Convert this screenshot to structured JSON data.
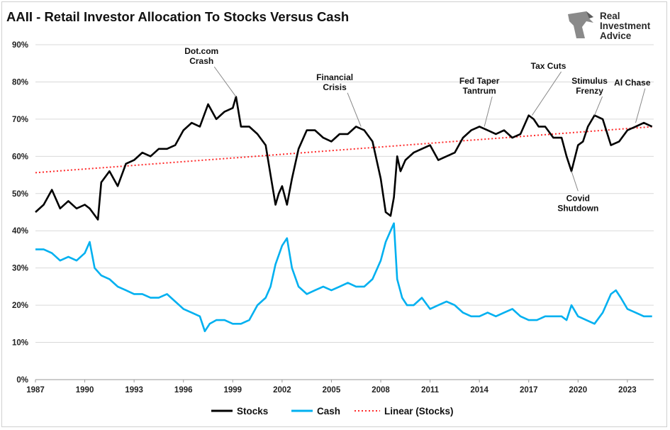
{
  "title": "AAII - Retail Investor Allocation To Stocks Versus Cash",
  "logo": {
    "lines": [
      "Real",
      "Investment",
      "Advice"
    ]
  },
  "colors": {
    "stocks": "#000000",
    "cash": "#00b0f0",
    "trend": "#ff2a2a",
    "grid": "#d9d9d9"
  },
  "chart_data": {
    "type": "line",
    "title": "AAII - Retail Investor Allocation To Stocks Versus Cash",
    "xlabel": "",
    "ylabel": "",
    "xlim": [
      1987,
      2024.6
    ],
    "ylim": [
      0,
      90
    ],
    "y_ticks": [
      "0%",
      "10%",
      "20%",
      "30%",
      "40%",
      "50%",
      "60%",
      "70%",
      "80%",
      "90%"
    ],
    "x_ticks": [
      "1987",
      "1990",
      "1993",
      "1996",
      "1999",
      "2002",
      "2005",
      "2008",
      "2011",
      "2014",
      "2017",
      "2020",
      "2023"
    ],
    "grid": "horizontal",
    "legend_position": "bottom",
    "series": [
      {
        "name": "Stocks",
        "x": [
          1987.0,
          1987.5,
          1988.0,
          1988.5,
          1989.0,
          1989.5,
          1990.0,
          1990.3,
          1990.8,
          1991.0,
          1991.5,
          1992.0,
          1992.5,
          1993.0,
          1993.5,
          1994.0,
          1994.5,
          1995.0,
          1995.5,
          1996.0,
          1996.5,
          1997.0,
          1997.5,
          1998.0,
          1998.5,
          1999.0,
          1999.2,
          1999.5,
          2000.0,
          2000.5,
          2001.0,
          2001.3,
          2001.6,
          2001.8,
          2002.0,
          2002.3,
          2002.6,
          2003.0,
          2003.5,
          2004.0,
          2004.5,
          2005.0,
          2005.5,
          2006.0,
          2006.5,
          2007.0,
          2007.5,
          2008.0,
          2008.3,
          2008.6,
          2008.8,
          2009.0,
          2009.2,
          2009.5,
          2010.0,
          2010.5,
          2011.0,
          2011.5,
          2012.0,
          2012.5,
          2013.0,
          2013.5,
          2014.0,
          2014.5,
          2015.0,
          2015.5,
          2016.0,
          2016.5,
          2017.0,
          2017.3,
          2017.6,
          2018.0,
          2018.5,
          2019.0,
          2019.3,
          2019.6,
          2020.0,
          2020.3,
          2020.6,
          2021.0,
          2021.5,
          2022.0,
          2022.5,
          2023.0,
          2023.5,
          2024.0,
          2024.5
        ],
        "values": [
          45,
          47,
          51,
          46,
          48,
          46,
          47,
          46,
          43,
          53,
          56,
          52,
          58,
          59,
          61,
          60,
          62,
          62,
          63,
          67,
          69,
          68,
          74,
          70,
          72,
          73,
          76,
          68,
          68,
          66,
          63,
          55,
          47,
          50,
          52,
          47,
          54,
          62,
          67,
          67,
          65,
          64,
          66,
          66,
          68,
          67,
          64,
          54,
          45,
          44,
          49,
          60,
          56,
          59,
          61,
          62,
          63,
          59,
          60,
          61,
          65,
          67,
          68,
          67,
          66,
          67,
          65,
          66,
          71,
          70,
          68,
          68,
          65,
          65,
          60,
          56,
          63,
          64,
          68,
          71,
          70,
          63,
          64,
          67,
          68,
          69,
          68
        ]
      },
      {
        "name": "Cash",
        "x": [
          1987.0,
          1987.5,
          1988.0,
          1988.5,
          1989.0,
          1989.5,
          1990.0,
          1990.3,
          1990.6,
          1991.0,
          1991.5,
          1992.0,
          1992.5,
          1993.0,
          1993.5,
          1994.0,
          1994.5,
          1995.0,
          1995.5,
          1996.0,
          1996.5,
          1997.0,
          1997.3,
          1997.6,
          1998.0,
          1998.5,
          1999.0,
          1999.5,
          2000.0,
          2000.5,
          2001.0,
          2001.3,
          2001.6,
          2002.0,
          2002.3,
          2002.6,
          2003.0,
          2003.5,
          2004.0,
          2004.5,
          2005.0,
          2005.5,
          2006.0,
          2006.5,
          2007.0,
          2007.5,
          2008.0,
          2008.3,
          2008.6,
          2008.8,
          2009.0,
          2009.3,
          2009.6,
          2010.0,
          2010.5,
          2011.0,
          2011.5,
          2012.0,
          2012.5,
          2013.0,
          2013.5,
          2014.0,
          2014.5,
          2015.0,
          2015.5,
          2016.0,
          2016.5,
          2017.0,
          2017.5,
          2018.0,
          2018.5,
          2019.0,
          2019.3,
          2019.6,
          2020.0,
          2020.5,
          2021.0,
          2021.5,
          2022.0,
          2022.3,
          2022.6,
          2023.0,
          2023.5,
          2024.0,
          2024.5
        ],
        "values": [
          35,
          35,
          34,
          32,
          33,
          32,
          34,
          37,
          30,
          28,
          27,
          25,
          24,
          23,
          23,
          22,
          22,
          23,
          21,
          19,
          18,
          17,
          13,
          15,
          16,
          16,
          15,
          15,
          16,
          20,
          22,
          25,
          31,
          36,
          38,
          30,
          25,
          23,
          24,
          25,
          24,
          25,
          26,
          25,
          25,
          27,
          32,
          37,
          40,
          42,
          27,
          22,
          20,
          20,
          22,
          19,
          20,
          21,
          20,
          18,
          17,
          17,
          18,
          17,
          18,
          19,
          17,
          16,
          16,
          17,
          17,
          17,
          16,
          20,
          17,
          16,
          15,
          18,
          23,
          24,
          22,
          19,
          18,
          17,
          17
        ]
      },
      {
        "name": "Linear (Stocks)",
        "style": "dotted",
        "x": [
          1987.0,
          2024.6
        ],
        "values": [
          55.6,
          68.0
        ]
      }
    ],
    "annotations": [
      {
        "text": "Dot.com Crash",
        "lines": [
          "Dot.com",
          "Crash"
        ],
        "x": 1999.2,
        "y": 76
      },
      {
        "text": "Financial Crisis",
        "lines": [
          "Financial",
          "Crisis"
        ],
        "x": 2006.8,
        "y": 68
      },
      {
        "text": "Fed Taper Tantrum",
        "lines": [
          "Fed Taper",
          "Tantrum"
        ],
        "x": 2014.3,
        "y": 68
      },
      {
        "text": "Tax Cuts",
        "lines": [
          "Tax Cuts"
        ],
        "x": 2017.2,
        "y": 71
      },
      {
        "text": "Stimulus Frenzy",
        "lines": [
          "Stimulus",
          "Frenzy"
        ],
        "x": 2021.0,
        "y": 71
      },
      {
        "text": "AI Chase",
        "lines": [
          "AI Chase"
        ],
        "x": 2023.5,
        "y": 69
      },
      {
        "text": "Covid Shutdown",
        "lines": [
          "Covid",
          "Shutdown"
        ],
        "x": 2019.6,
        "y": 56
      }
    ]
  }
}
